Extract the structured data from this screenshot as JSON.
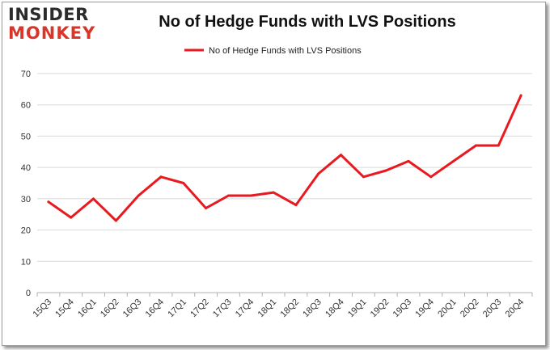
{
  "brand": {
    "line1": "INSIDER",
    "line2": "MONKEY"
  },
  "chart_data": {
    "type": "line",
    "title": "No of Hedge Funds with LVS Positions",
    "xlabel": "",
    "ylabel": "",
    "categories": [
      "15Q3",
      "15Q4",
      "16Q1",
      "16Q2",
      "16Q3",
      "16Q4",
      "17Q1",
      "17Q2",
      "17Q3",
      "17Q4",
      "18Q1",
      "18Q2",
      "18Q3",
      "18Q4",
      "19Q1",
      "19Q2",
      "19Q3",
      "19Q4",
      "20Q1",
      "20Q2",
      "20Q3",
      "20Q4"
    ],
    "series": [
      {
        "name": "No of Hedge Funds with LVS Positions",
        "values": [
          29,
          24,
          30,
          23,
          31,
          37,
          35,
          27,
          31,
          31,
          32,
          28,
          38,
          44,
          37,
          39,
          42,
          37,
          42,
          47,
          47,
          63
        ]
      }
    ],
    "ylim": [
      0,
      70
    ],
    "yticks": [
      0,
      10,
      20,
      30,
      40,
      50,
      60,
      70
    ],
    "grid": true,
    "legend": "top-center",
    "line_color": "#e8191f"
  }
}
